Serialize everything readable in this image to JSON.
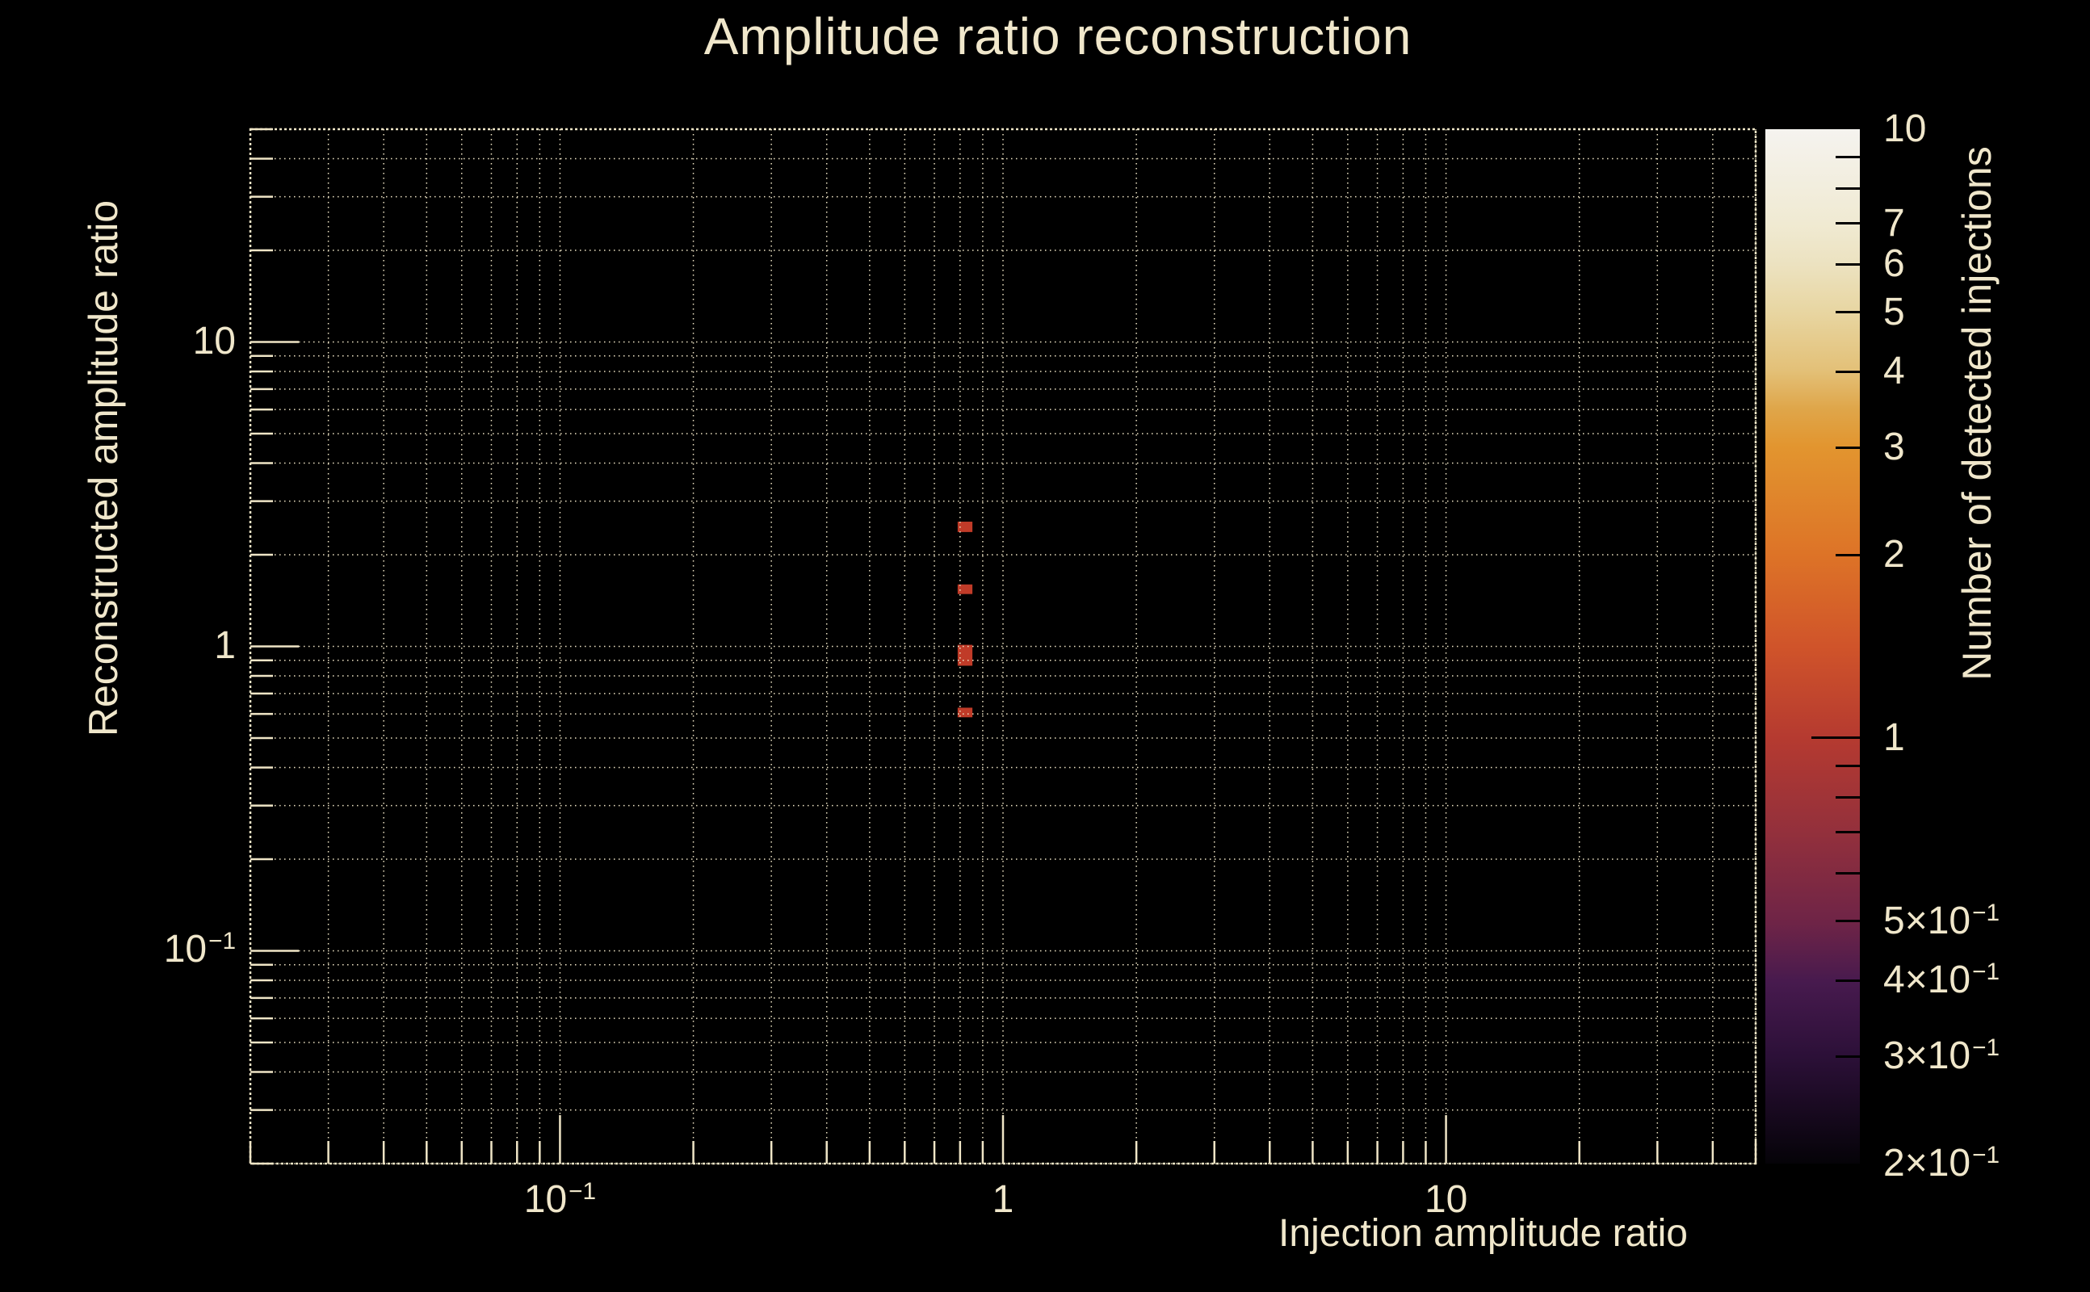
{
  "colors": {
    "background": "#000000",
    "foreground": "#f0e7cb",
    "grid": "#efe5c6",
    "frame": "#efe5c6",
    "cell": "#c03b28",
    "colorbar_tick": "#000000"
  },
  "chart_data": {
    "type": "heatmap",
    "title": "Amplitude ratio reconstruction",
    "xlabel": "Injection amplitude ratio",
    "ylabel": "Reconstructed amplitude ratio",
    "zlabel": "Number of detected injections",
    "xscale": "log",
    "yscale": "log",
    "zscale": "log",
    "xlim": [
      0.02,
      50
    ],
    "ylim": [
      0.02,
      50
    ],
    "zlim": [
      0.2,
      10
    ],
    "grid": true,
    "grid_style": "dotted-at-all-log-ticks",
    "legend_position": "colorbar-right",
    "x_ticks": [
      {
        "v": 0.1,
        "main": "10",
        "sup": "−1"
      },
      {
        "v": 1,
        "main": "1"
      },
      {
        "v": 10,
        "main": "10"
      }
    ],
    "y_ticks": [
      {
        "v": 10,
        "main": "10"
      },
      {
        "v": 1,
        "main": "1"
      },
      {
        "v": 0.1,
        "main": "10",
        "sup": "−1"
      }
    ],
    "z_ticks": [
      {
        "v": 10,
        "main": "10"
      },
      {
        "v": 7,
        "main": "7"
      },
      {
        "v": 6,
        "main": "6"
      },
      {
        "v": 5,
        "main": "5"
      },
      {
        "v": 4,
        "main": "4"
      },
      {
        "v": 3,
        "main": "3"
      },
      {
        "v": 2,
        "main": "2"
      },
      {
        "v": 1,
        "main": "1"
      },
      {
        "v": 0.5,
        "main": "5×10",
        "sup": "−1"
      },
      {
        "v": 0.4,
        "main": "4×10",
        "sup": "−1"
      },
      {
        "v": 0.3,
        "main": "3×10",
        "sup": "−1"
      },
      {
        "v": 0.2,
        "main": "2×10",
        "sup": "−1"
      }
    ],
    "cells": [
      {
        "x0": 0.79,
        "x1": 0.853,
        "y0": 2.375,
        "y1": 2.569,
        "count": 1
      },
      {
        "x0": 0.79,
        "x1": 0.853,
        "y0": 1.486,
        "y1": 1.598,
        "count": 1
      },
      {
        "x0": 0.79,
        "x1": 0.853,
        "y0": 0.864,
        "y1": 1.012,
        "count": 1
      },
      {
        "x0": 0.79,
        "x1": 0.853,
        "y0": 0.585,
        "y1": 0.629,
        "count": 1
      }
    ],
    "colorbar_stops": [
      {
        "t": 0.0,
        "color": "#050308"
      },
      {
        "t": 0.104,
        "color": "#2c1038"
      },
      {
        "t": 0.175,
        "color": "#471a4e"
      },
      {
        "t": 0.232,
        "color": "#6e2447"
      },
      {
        "t": 0.32,
        "color": "#93303c"
      },
      {
        "t": 0.411,
        "color": "#b53a30"
      },
      {
        "t": 0.5,
        "color": "#d0542a"
      },
      {
        "t": 0.588,
        "color": "#dd7327"
      },
      {
        "t": 0.693,
        "color": "#e2952f"
      },
      {
        "t": 0.73,
        "color": "#dfa64a"
      },
      {
        "t": 0.766,
        "color": "#e3c077"
      },
      {
        "t": 0.824,
        "color": "#e8d6a2"
      },
      {
        "t": 0.869,
        "color": "#ece2c0"
      },
      {
        "t": 0.908,
        "color": "#f0ead2"
      },
      {
        "t": 1.0,
        "color": "#f5f3ef"
      }
    ]
  }
}
